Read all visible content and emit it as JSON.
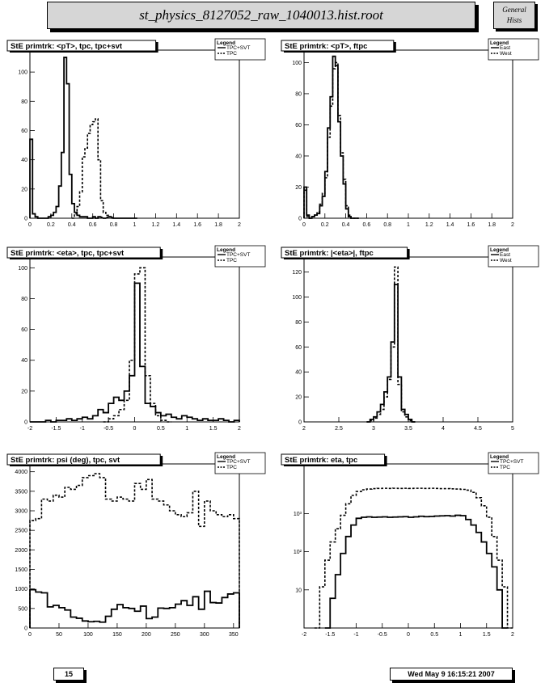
{
  "header": {
    "title": "st_physics_8127052_raw_1040013.hist.root",
    "side_line1": "General",
    "side_line2": "Hists"
  },
  "footer": {
    "page": "15",
    "date": "Wed May  9 16:15:21 2007"
  },
  "chart_data": [
    {
      "type": "line",
      "title": "StE primtrk: <pT>, tpc, tpc+svt",
      "legend_title": "Legend",
      "legend": "top-right",
      "xlim": [
        0,
        2
      ],
      "ylim": [
        0,
        115
      ],
      "log_y": false,
      "xticks": [
        0,
        0.2,
        0.4,
        0.6,
        0.8,
        1,
        1.2,
        1.4,
        1.6,
        1.8,
        2
      ],
      "xtick_labels": [
        "0",
        "0.2",
        "0.4",
        "0.6",
        "0.8",
        "1",
        "1.2",
        "1.4",
        "1.6",
        "1.8",
        "2"
      ],
      "yticks": [
        0,
        20,
        40,
        60,
        80,
        100
      ],
      "ytick_labels": [
        "0",
        "20",
        "40",
        "60",
        "80",
        "100"
      ],
      "series": [
        {
          "name": "TPC+SVT",
          "style": "solid",
          "step": 0.025,
          "x": [
            0,
            0.025,
            0.05,
            0.075,
            0.1,
            0.125,
            0.15,
            0.175,
            0.2,
            0.225,
            0.25,
            0.275,
            0.3,
            0.325,
            0.35,
            0.375,
            0.4,
            0.425,
            0.45,
            0.475,
            0.5,
            0.525,
            0.55,
            0.575,
            0.6,
            0.625,
            0.65,
            0.7,
            0.75,
            0.8,
            0.9,
            1.0
          ],
          "y": [
            54,
            3,
            1,
            0,
            0,
            0,
            0,
            1,
            2,
            4,
            8,
            22,
            45,
            110,
            92,
            30,
            10,
            4,
            2,
            1,
            1,
            1,
            0,
            0,
            1,
            0,
            1,
            0,
            1,
            0,
            0,
            0
          ]
        },
        {
          "name": "TPC",
          "style": "dashed",
          "step": 0.025,
          "x": [
            0.4,
            0.425,
            0.45,
            0.475,
            0.5,
            0.525,
            0.55,
            0.575,
            0.6,
            0.625,
            0.65,
            0.675,
            0.7,
            0.725,
            0.75,
            0.775
          ],
          "y": [
            0,
            3,
            8,
            18,
            42,
            48,
            58,
            64,
            66,
            68,
            40,
            12,
            4,
            2,
            1,
            0
          ]
        }
      ]
    },
    {
      "type": "line",
      "title": "StE primtrk: <pT>, ftpc",
      "legend_title": "Legend",
      "legend": "top-right",
      "xlim": [
        0,
        2
      ],
      "ylim": [
        0,
        108
      ],
      "log_y": false,
      "xticks": [
        0,
        0.2,
        0.4,
        0.6,
        0.8,
        1,
        1.2,
        1.4,
        1.6,
        1.8,
        2
      ],
      "xtick_labels": [
        "0",
        "0.2",
        "0.4",
        "0.6",
        "0.8",
        "1",
        "1.2",
        "1.4",
        "1.6",
        "1.8",
        "2"
      ],
      "yticks": [
        0,
        20,
        40,
        60,
        80,
        100
      ],
      "ytick_labels": [
        "0",
        "20",
        "40",
        "60",
        "80",
        "100"
      ],
      "series": [
        {
          "name": "East",
          "style": "solid",
          "step": 0.025,
          "x": [
            0,
            0.025,
            0.05,
            0.075,
            0.1,
            0.125,
            0.15,
            0.175,
            0.2,
            0.225,
            0.25,
            0.275,
            0.3,
            0.325,
            0.35,
            0.375,
            0.4,
            0.425,
            0.45,
            0.5
          ],
          "y": [
            20,
            2,
            0,
            1,
            2,
            3,
            8,
            14,
            30,
            58,
            78,
            104,
            98,
            62,
            40,
            22,
            6,
            1,
            0,
            0
          ]
        },
        {
          "name": "West",
          "style": "dashed",
          "step": 0.025,
          "x": [
            0,
            0.025,
            0.05,
            0.075,
            0.1,
            0.125,
            0.15,
            0.175,
            0.2,
            0.225,
            0.25,
            0.275,
            0.3,
            0.325,
            0.35,
            0.375,
            0.4,
            0.425,
            0.45,
            0.5
          ],
          "y": [
            18,
            1,
            0,
            1,
            2,
            4,
            9,
            16,
            26,
            52,
            72,
            96,
            100,
            66,
            42,
            25,
            8,
            2,
            0,
            0
          ]
        }
      ]
    },
    {
      "type": "line",
      "title": "StE primtrk: <eta>, tpc, tpc+svt",
      "legend_title": "Legend",
      "legend": "top-right",
      "xlim": [
        -2,
        2
      ],
      "ylim": [
        0,
        107
      ],
      "log_y": false,
      "xticks": [
        -2,
        -1.5,
        -1,
        -0.5,
        0,
        0.5,
        1,
        1.5,
        2
      ],
      "xtick_labels": [
        "-2",
        "-1.5",
        "-1",
        "-0.5",
        "0",
        "0.5",
        "1",
        "1.5",
        "2"
      ],
      "yticks": [
        0,
        20,
        40,
        60,
        80,
        100
      ],
      "ytick_labels": [
        "0",
        "20",
        "40",
        "60",
        "80",
        "100"
      ],
      "series": [
        {
          "name": "TPC+SVT",
          "style": "solid",
          "step": 0.1,
          "x": [
            -2,
            -1.9,
            -1.8,
            -1.7,
            -1.6,
            -1.5,
            -1.4,
            -1.3,
            -1.2,
            -1.1,
            -1.0,
            -0.9,
            -0.8,
            -0.7,
            -0.6,
            -0.5,
            -0.4,
            -0.3,
            -0.2,
            -0.1,
            0,
            0.1,
            0.2,
            0.3,
            0.4,
            0.5,
            0.6,
            0.7,
            0.8,
            0.9,
            1.0,
            1.1,
            1.2,
            1.3,
            1.4,
            1.5,
            1.6,
            1.7,
            1.8,
            1.9
          ],
          "y": [
            0,
            0,
            0,
            1,
            0,
            1,
            1,
            2,
            1,
            2,
            3,
            2,
            4,
            8,
            6,
            12,
            16,
            14,
            20,
            30,
            90,
            36,
            12,
            10,
            6,
            4,
            5,
            3,
            2,
            4,
            3,
            2,
            1,
            2,
            1,
            1,
            2,
            1,
            0,
            1
          ]
        },
        {
          "name": "TPC",
          "style": "dashed",
          "step": 0.1,
          "x": [
            -0.6,
            -0.5,
            -0.4,
            -0.3,
            -0.2,
            -0.1,
            0,
            0.1,
            0.2,
            0.3,
            0.4,
            0.5,
            0.6
          ],
          "y": [
            0,
            2,
            4,
            8,
            14,
            40,
            96,
            100,
            30,
            12,
            4,
            1,
            0
          ]
        }
      ]
    },
    {
      "type": "line",
      "title": "StE primtrk: |<eta>|, ftpc",
      "legend_title": "Legend",
      "legend": "top-right",
      "xlim": [
        2,
        5
      ],
      "ylim": [
        0,
        132
      ],
      "log_y": false,
      "xticks": [
        2,
        2.5,
        3,
        3.5,
        4,
        4.5,
        5
      ],
      "xtick_labels": [
        "2",
        "2.5",
        "3",
        "3.5",
        "4",
        "4.5",
        "5"
      ],
      "yticks": [
        0,
        20,
        40,
        60,
        80,
        100,
        120
      ],
      "ytick_labels": [
        "0",
        "20",
        "40",
        "60",
        "80",
        "100",
        "120"
      ],
      "series": [
        {
          "name": "East",
          "style": "solid",
          "step": 0.05,
          "x": [
            2.9,
            2.95,
            3.0,
            3.05,
            3.1,
            3.15,
            3.2,
            3.25,
            3.3,
            3.35,
            3.4,
            3.45,
            3.5,
            3.55
          ],
          "y": [
            0,
            2,
            4,
            8,
            14,
            24,
            36,
            64,
            110,
            36,
            10,
            6,
            2,
            0
          ]
        },
        {
          "name": "West",
          "style": "dashed",
          "step": 0.05,
          "x": [
            2.9,
            2.95,
            3.0,
            3.05,
            3.1,
            3.15,
            3.2,
            3.25,
            3.3,
            3.35,
            3.4,
            3.45,
            3.5,
            3.55
          ],
          "y": [
            0,
            1,
            3,
            6,
            10,
            20,
            34,
            60,
            124,
            30,
            8,
            4,
            1,
            0
          ]
        }
      ]
    },
    {
      "type": "line",
      "title": "StE primtrk: psi (deg), tpc, svt",
      "legend_title": "Legend",
      "legend": "top-right",
      "xlim": [
        0,
        360
      ],
      "ylim": [
        0,
        4200
      ],
      "log_y": false,
      "xticks": [
        0,
        50,
        100,
        150,
        200,
        250,
        300,
        350
      ],
      "xtick_labels": [
        "0",
        "50",
        "100",
        "150",
        "200",
        "250",
        "300",
        "350"
      ],
      "yticks": [
        0,
        500,
        1000,
        1500,
        2000,
        2500,
        3000,
        3500,
        4000
      ],
      "ytick_labels": [
        "0",
        "500",
        "1000",
        "1500",
        "2000",
        "2500",
        "3000",
        "3500",
        "4000"
      ],
      "series": [
        {
          "name": "TPC+SVT",
          "style": "solid",
          "step": 10,
          "x": [
            0,
            10,
            20,
            30,
            40,
            50,
            60,
            70,
            80,
            90,
            100,
            110,
            120,
            130,
            140,
            150,
            160,
            170,
            180,
            190,
            200,
            210,
            220,
            230,
            240,
            250,
            260,
            270,
            280,
            290,
            300,
            310,
            320,
            330,
            340,
            350
          ],
          "y": [
            980,
            920,
            900,
            540,
            580,
            520,
            460,
            280,
            250,
            180,
            160,
            170,
            150,
            300,
            480,
            600,
            520,
            500,
            430,
            560,
            240,
            280,
            510,
            500,
            520,
            610,
            700,
            580,
            800,
            480,
            940,
            650,
            640,
            780,
            870,
            900
          ]
        },
        {
          "name": "TPC",
          "style": "dashed",
          "step": 10,
          "x": [
            0,
            10,
            20,
            30,
            40,
            50,
            60,
            70,
            80,
            90,
            100,
            110,
            120,
            130,
            140,
            150,
            160,
            170,
            180,
            190,
            200,
            210,
            220,
            230,
            240,
            250,
            260,
            270,
            280,
            290,
            300,
            310,
            320,
            330,
            340,
            350
          ],
          "y": [
            2750,
            2800,
            3300,
            3250,
            3400,
            3350,
            3600,
            3550,
            3650,
            3850,
            3900,
            3950,
            3850,
            3300,
            3250,
            3350,
            3300,
            3250,
            3700,
            3550,
            3800,
            3300,
            3250,
            3150,
            3000,
            2900,
            2850,
            2950,
            3500,
            2600,
            3250,
            3000,
            2900,
            2850,
            2900,
            2800
          ]
        }
      ]
    },
    {
      "type": "line",
      "title": "StE primtrk: eta, tpc",
      "legend_title": "Legend",
      "legend": "top-right",
      "xlim": [
        -2,
        2
      ],
      "ylim": [
        1,
        20000
      ],
      "log_y": true,
      "xticks": [
        -2,
        -1.5,
        -1,
        -0.5,
        0,
        0.5,
        1,
        1.5,
        2
      ],
      "xtick_labels": [
        "-2",
        "-1.5",
        "-1",
        "-0.5",
        "0",
        "0.5",
        "1",
        "1.5",
        "2"
      ],
      "yticks": [
        10,
        100,
        1000
      ],
      "ytick_labels": [
        "10",
        "10²",
        "10³"
      ],
      "series": [
        {
          "name": "TPC+SVT",
          "style": "solid",
          "step": 0.1,
          "x": [
            -1.6,
            -1.5,
            -1.4,
            -1.3,
            -1.2,
            -1.1,
            -1.0,
            -0.9,
            -0.8,
            -0.7,
            -0.6,
            -0.5,
            -0.4,
            -0.3,
            -0.2,
            -0.1,
            0,
            0.1,
            0.2,
            0.3,
            0.4,
            0.5,
            0.6,
            0.7,
            0.8,
            0.9,
            1.0,
            1.1,
            1.2,
            1.3,
            1.4,
            1.5,
            1.6,
            1.7,
            1.8
          ],
          "y": [
            1,
            6,
            25,
            90,
            250,
            500,
            750,
            800,
            820,
            800,
            810,
            820,
            800,
            810,
            820,
            830,
            800,
            820,
            850,
            830,
            840,
            860,
            870,
            880,
            860,
            900,
            880,
            700,
            500,
            320,
            180,
            90,
            40,
            10,
            1
          ]
        },
        {
          "name": "TPC",
          "style": "dashed",
          "step": 0.1,
          "x": [
            -1.8,
            -1.7,
            -1.6,
            -1.5,
            -1.4,
            -1.3,
            -1.2,
            -1.1,
            -1.0,
            -0.9,
            -0.8,
            -0.7,
            -0.6,
            -0.5,
            -0.4,
            -0.3,
            -0.2,
            -0.1,
            0,
            0.1,
            0.2,
            0.3,
            0.4,
            0.5,
            0.6,
            0.7,
            0.8,
            0.9,
            1.0,
            1.1,
            1.2,
            1.3,
            1.4,
            1.5,
            1.6,
            1.7,
            1.8,
            1.9
          ],
          "y": [
            1,
            12,
            60,
            180,
            400,
            900,
            1800,
            3000,
            3800,
            4200,
            4400,
            4500,
            4550,
            4600,
            4550,
            4600,
            4550,
            4600,
            4550,
            4600,
            4600,
            4550,
            4600,
            4550,
            4500,
            4500,
            4450,
            4400,
            4300,
            4100,
            3600,
            2600,
            1600,
            800,
            250,
            60,
            12,
            1
          ]
        }
      ]
    }
  ]
}
